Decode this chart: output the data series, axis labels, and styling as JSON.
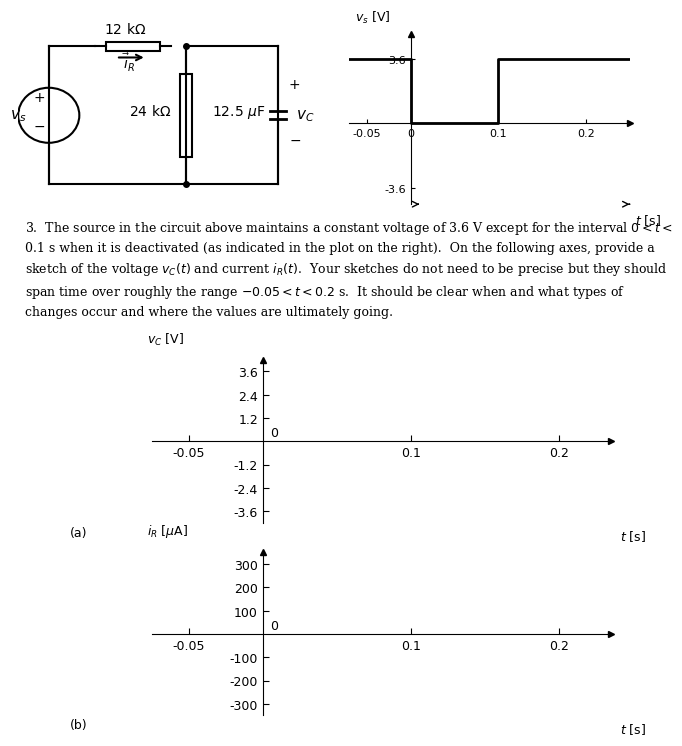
{
  "bg_color": "#ffffff",
  "circuit": {
    "title_12kohm": "12 kΩ",
    "title_24kohm": "24 kΩ",
    "title_cap": "12.5 μF",
    "label_vs": "v_s",
    "label_iR": "i_R",
    "label_vc": "v_C"
  },
  "vs_plot": {
    "ylabel": "v_s [V]",
    "xlabel": "t [s]",
    "xlim": [
      -0.07,
      0.25
    ],
    "ylim": [
      -4.5,
      5.0
    ],
    "xticks": [
      -0.05,
      0,
      0.1,
      0.2
    ],
    "xticklabels": [
      "-0.05",
      "0",
      "0.1",
      "0.2"
    ],
    "ytick_36": "3.6",
    "ytick_neg36": "-3.6",
    "signal_x": [
      -0.07,
      0.0,
      0.0,
      0.1,
      0.1,
      0.25
    ],
    "signal_y": [
      3.6,
      3.6,
      0.0,
      0.0,
      3.6,
      3.6
    ]
  },
  "problem_text_line1": "3.  The source in the circuit above maintains a constant voltage of 3.6 V except for the interval 0 < t <",
  "problem_text_line2": "0.1 s when it is deactivated (as indicated in the plot on the right).  On the following axes, provide a",
  "problem_text_line3": "sketch of the voltage v⁣C(t) and current i⁣R(t).  Your sketches do not need to be precise but they should",
  "problem_text_line4": "span time over roughly the range −0.05 < t < 0.2 s.  It should be clear when and what types of",
  "problem_text_line5": "changes occur and where the values are ultimately going.",
  "plot_a": {
    "ylabel": "v_C [V]",
    "xlabel": "t [s]",
    "xlim": [
      -0.075,
      0.235
    ],
    "ylim": [
      -4.2,
      4.2
    ],
    "xticks": [
      -0.05,
      0,
      0.1,
      0.2
    ],
    "xticklabels": [
      "-0.05",
      "0",
      "0.1",
      "0.2"
    ],
    "yticks": [
      -3.6,
      -2.4,
      -1.2,
      0,
      1.2,
      2.4,
      3.6
    ],
    "yticklabels": [
      "-3.6",
      "-2.4",
      "-1.2",
      "0",
      "1.2",
      "2.4",
      "3.6"
    ],
    "label": "(a)"
  },
  "plot_b": {
    "ylabel": "i_R [μA]",
    "xlabel": "t [s]",
    "xlim": [
      -0.075,
      0.235
    ],
    "ylim": [
      -350,
      350
    ],
    "xticks": [
      -0.05,
      0,
      0.1,
      0.2
    ],
    "xticklabels": [
      "-0.05",
      "0",
      "0.1",
      "0.2"
    ],
    "yticks": [
      -300,
      -200,
      -100,
      0,
      100,
      200,
      300
    ],
    "yticklabels": [
      "-300",
      "-200",
      "-100",
      "0",
      "100",
      "200",
      "300"
    ],
    "label": "(b)"
  },
  "font_size": 10,
  "tick_font_size": 9,
  "axis_label_size": 10,
  "line_color": "#000000",
  "line_width": 1.5
}
